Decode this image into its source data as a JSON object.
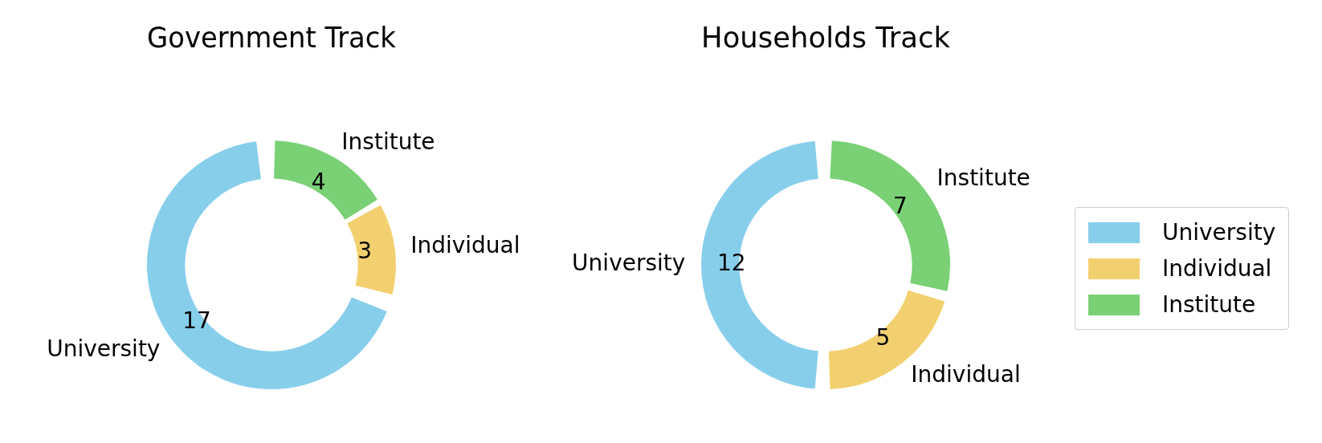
{
  "chart_data": [
    {
      "type": "donut",
      "title": "Government Track",
      "categories": [
        "University",
        "Individual",
        "Institute"
      ],
      "values": [
        17,
        3,
        4
      ],
      "colors": [
        "#87ceeb",
        "#f3d06f",
        "#7ad175"
      ],
      "data_labels": true
    },
    {
      "type": "donut",
      "title": "Households Track",
      "categories": [
        "University",
        "Individual",
        "Institute"
      ],
      "values": [
        12,
        5,
        7
      ],
      "colors": [
        "#87ceeb",
        "#f3d06f",
        "#7ad175"
      ],
      "data_labels": true,
      "legend": "right"
    }
  ]
}
